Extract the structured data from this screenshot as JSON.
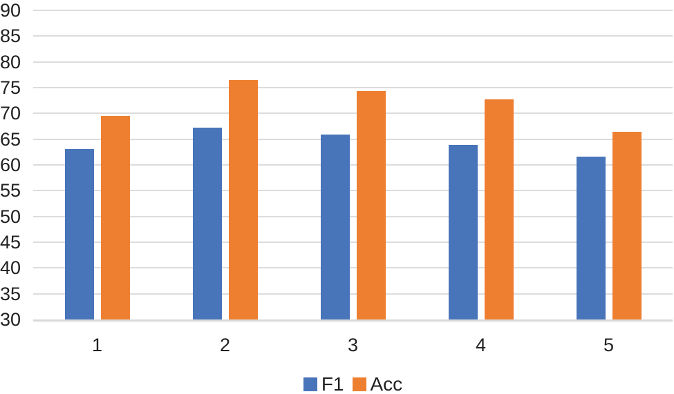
{
  "chart_data": {
    "type": "bar",
    "categories": [
      "1",
      "2",
      "3",
      "4",
      "5"
    ],
    "series": [
      {
        "name": "F1",
        "color": "#4874B9",
        "values": [
          63.1,
          67.2,
          65.9,
          63.9,
          61.6
        ]
      },
      {
        "name": "Acc",
        "color": "#EE7F31",
        "values": [
          69.5,
          76.5,
          74.3,
          72.7,
          66.4
        ]
      }
    ],
    "title": "",
    "xlabel": "",
    "ylabel": "",
    "ylim": [
      30,
      90
    ],
    "ytick_step": 5,
    "ytick_labels": [
      "30",
      "35",
      "40",
      "45",
      "50",
      "55",
      "60",
      "65",
      "70",
      "75",
      "80",
      "85",
      "90"
    ],
    "grid": true,
    "gridline_color": "#DCDCDC",
    "axis_line_color": "#D9D9D9",
    "text_color": "#212121",
    "legend_position": "bottom"
  }
}
